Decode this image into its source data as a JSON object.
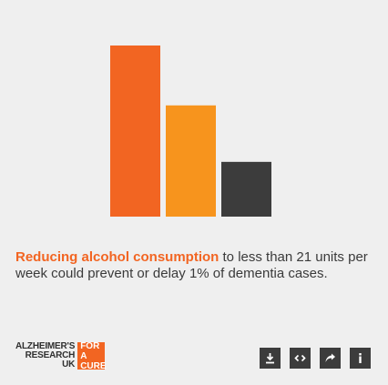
{
  "chart_data": {
    "type": "bar",
    "categories": [
      "",
      "",
      ""
    ],
    "values": [
      100,
      65,
      32
    ],
    "colors": [
      "#f26522",
      "#f7941d",
      "#3c3c3c"
    ],
    "title": "",
    "xlabel": "",
    "ylabel": "",
    "ylim": [
      0,
      100
    ],
    "grid": false
  },
  "caption": {
    "highlight": "Reducing alcohol consumption",
    "rest": " to less than 21 units per week could prevent or delay 1% of dementia cases."
  },
  "logo": {
    "line1": "ALZHEIMER'S",
    "line2": "RESEARCH",
    "line3": "UK",
    "badge_line1": "FOR A",
    "badge_line2": "CURE"
  },
  "toolbar": {
    "buttons": [
      {
        "icon": "download-icon"
      },
      {
        "icon": "embed-code-icon"
      },
      {
        "icon": "share-icon"
      },
      {
        "icon": "info-icon"
      }
    ]
  },
  "colors": {
    "accent": "#f26522",
    "accent2": "#f7941d",
    "dark": "#3c3c3c",
    "background": "#efefef"
  }
}
